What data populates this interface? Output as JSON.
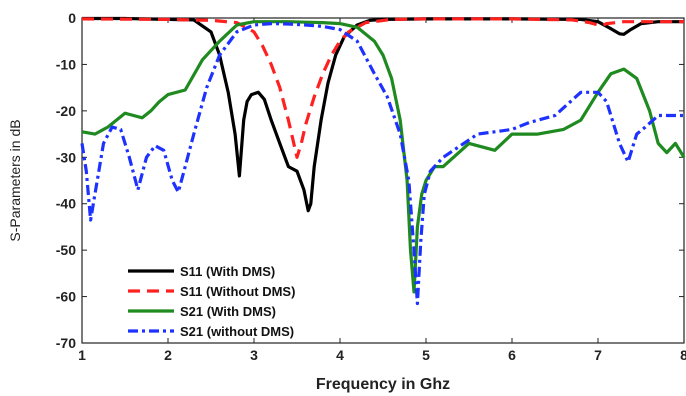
{
  "chart_data": {
    "type": "line",
    "title": "",
    "xlabel": "Frequency in Ghz",
    "ylabel": "S-Parameters in dB",
    "xlim": [
      1,
      8
    ],
    "ylim": [
      -70,
      0
    ],
    "xticks": [
      1,
      2,
      3,
      4,
      5,
      6,
      7,
      8
    ],
    "yticks": [
      0,
      -10,
      -20,
      -30,
      -40,
      -50,
      -60,
      -70
    ],
    "xtick_labels": [
      "1",
      "2",
      "3",
      "4",
      "5",
      "6",
      "7",
      "8"
    ],
    "ytick_labels": [
      "0",
      "-10",
      "-20",
      "-30",
      "-40",
      "-50",
      "-60",
      "-70"
    ],
    "grid": false,
    "legend_position": "bottom-left",
    "series": [
      {
        "name": "S11 (With DMS)",
        "color": "#000000",
        "dash": "solid",
        "x": [
          1.0,
          1.5,
          2.0,
          2.3,
          2.5,
          2.6,
          2.7,
          2.78,
          2.83,
          2.88,
          2.92,
          2.97,
          3.05,
          3.12,
          3.2,
          3.3,
          3.4,
          3.5,
          3.58,
          3.63,
          3.66,
          3.7,
          3.78,
          3.86,
          3.95,
          4.05,
          4.2,
          4.35,
          4.5,
          5.0,
          6.0,
          6.8,
          7.0,
          7.15,
          7.25,
          7.3,
          7.38,
          7.5,
          7.7,
          8.0
        ],
        "y": [
          -0.1,
          -0.1,
          -0.3,
          -0.4,
          -3,
          -8,
          -16,
          -25,
          -34,
          -22,
          -18,
          -16.5,
          -16,
          -17.5,
          -22,
          -27,
          -32,
          -33,
          -37,
          -41.5,
          -40,
          -32,
          -22,
          -14,
          -8,
          -4,
          -1.5,
          -0.5,
          -0.3,
          -0.2,
          -0.2,
          -0.3,
          -0.8,
          -2.3,
          -3.4,
          -3.5,
          -2.5,
          -1.2,
          -0.8,
          -0.8
        ]
      },
      {
        "name": "S11 (Without DMS)",
        "color": "#ff2020",
        "dash": "dashed",
        "x": [
          1.0,
          2.0,
          2.5,
          2.8,
          3.0,
          3.1,
          3.2,
          3.3,
          3.4,
          3.45,
          3.5,
          3.55,
          3.6,
          3.7,
          3.8,
          3.9,
          4.0,
          4.1,
          4.3,
          4.6,
          5.0,
          6.0,
          6.7,
          6.9,
          7.0,
          7.05,
          7.1,
          7.3,
          7.5,
          8.0
        ],
        "y": [
          -0.2,
          -0.3,
          -0.5,
          -1.0,
          -3,
          -6,
          -10,
          -15,
          -22,
          -26,
          -30,
          -27,
          -23,
          -17,
          -12,
          -8,
          -5,
          -3,
          -1,
          -0.3,
          -0.2,
          -0.2,
          -0.4,
          -1.0,
          -1.5,
          -1.6,
          -1.2,
          -0.8,
          -0.8,
          -0.8
        ]
      },
      {
        "name": "S21 (With DMS)",
        "color": "#1f8a1f",
        "dash": "solid",
        "x": [
          1.0,
          1.15,
          1.3,
          1.5,
          1.7,
          1.8,
          1.9,
          2.0,
          2.2,
          2.4,
          2.6,
          2.8,
          3.0,
          3.2,
          3.4,
          3.6,
          3.8,
          4.0,
          4.2,
          4.4,
          4.5,
          4.6,
          4.7,
          4.78,
          4.82,
          4.86,
          4.9,
          4.95,
          5.0,
          5.1,
          5.2,
          5.5,
          5.8,
          6.0,
          6.3,
          6.6,
          6.8,
          7.0,
          7.15,
          7.3,
          7.45,
          7.6,
          7.7,
          7.8,
          7.9,
          8.0
        ],
        "y": [
          -24.5,
          -25,
          -23.5,
          -20.5,
          -21.5,
          -20,
          -18,
          -16.5,
          -15.5,
          -9,
          -5,
          -1.5,
          -0.8,
          -0.8,
          -0.8,
          -0.9,
          -1,
          -1.2,
          -2,
          -5,
          -8,
          -13,
          -22,
          -35,
          -50,
          -59,
          -45,
          -38,
          -35,
          -32,
          -32,
          -27,
          -28.5,
          -25,
          -25,
          -24,
          -22,
          -16,
          -12,
          -11,
          -13,
          -20,
          -27,
          -29,
          -27,
          -30
        ]
      },
      {
        "name": "S21 (without DMS)",
        "color": "#1e32ff",
        "dash": "dashdot",
        "x": [
          1.0,
          1.05,
          1.1,
          1.15,
          1.25,
          1.35,
          1.45,
          1.55,
          1.65,
          1.75,
          1.85,
          1.95,
          2.05,
          2.12,
          2.2,
          2.3,
          2.45,
          2.6,
          2.8,
          3.0,
          3.2,
          3.4,
          3.6,
          3.8,
          4.0,
          4.2,
          4.4,
          4.55,
          4.7,
          4.8,
          4.86,
          4.9,
          4.94,
          4.98,
          5.05,
          5.2,
          5.4,
          5.6,
          5.8,
          6.0,
          6.2,
          6.5,
          6.8,
          7.0,
          7.1,
          7.25,
          7.35,
          7.45,
          7.55,
          7.7,
          7.85,
          8.0
        ],
        "y": [
          -27,
          -33,
          -43.5,
          -38,
          -27,
          -23.5,
          -24,
          -30,
          -37,
          -30,
          -27.5,
          -28.5,
          -35,
          -37.5,
          -32,
          -25,
          -15,
          -8,
          -3,
          -1.5,
          -1.2,
          -1.3,
          -1.5,
          -1.8,
          -2.5,
          -5,
          -12,
          -17,
          -25,
          -35,
          -50,
          -61.5,
          -48,
          -38,
          -33,
          -30,
          -27.5,
          -25,
          -24.5,
          -24,
          -22.5,
          -21,
          -16,
          -16,
          -18,
          -27,
          -31,
          -25,
          -23.5,
          -21,
          -21,
          -21
        ]
      }
    ]
  }
}
